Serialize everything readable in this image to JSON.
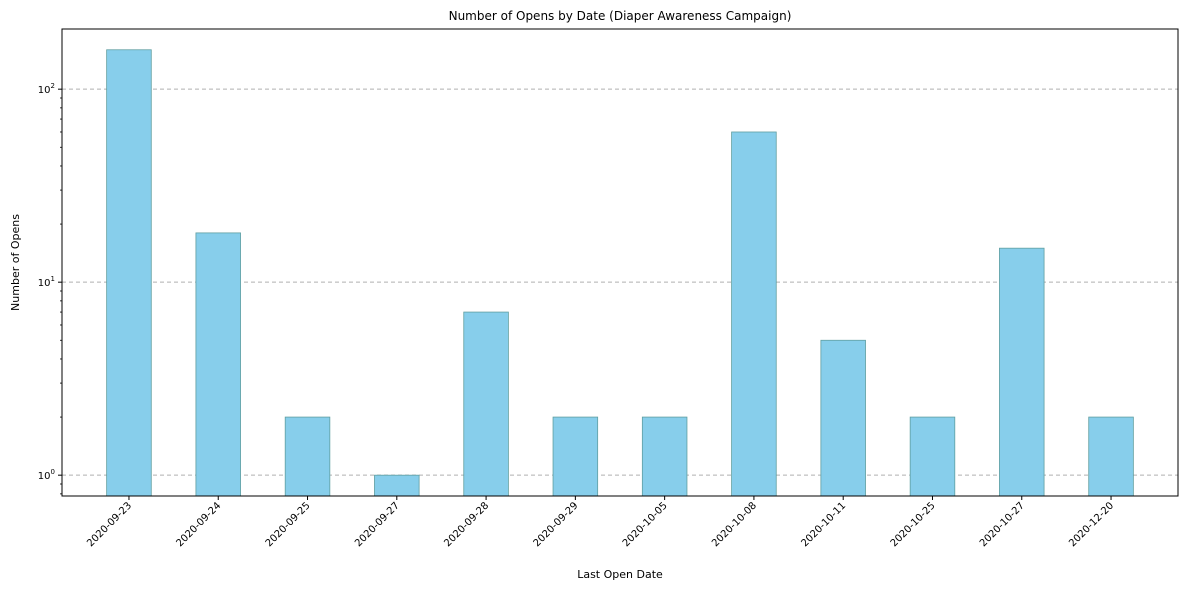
{
  "chart_data": {
    "type": "bar",
    "title": "Number of Opens by Date (Diaper Awareness Campaign)",
    "xlabel": "Last Open Date",
    "ylabel": "Number of Opens",
    "yscale": "log",
    "ylim": [
      0.78,
      205
    ],
    "y_ticks": [
      1,
      10,
      100
    ],
    "y_tick_labels": [
      {
        "base": "10",
        "exp": "0"
      },
      {
        "base": "10",
        "exp": "1"
      },
      {
        "base": "10",
        "exp": "2"
      }
    ],
    "grid": "horizontal dashed",
    "bar_color": "#87CEEB",
    "bar_edge_color": "#5f9ea0",
    "categories": [
      "2020-09-23",
      "2020-09-24",
      "2020-09-25",
      "2020-09-27",
      "2020-09-28",
      "2020-09-29",
      "2020-10-05",
      "2020-10-08",
      "2020-10-11",
      "2020-10-25",
      "2020-10-27",
      "2020-12-20"
    ],
    "values": [
      160,
      18,
      2,
      1,
      7,
      2,
      2,
      60,
      5,
      2,
      15,
      2
    ]
  }
}
